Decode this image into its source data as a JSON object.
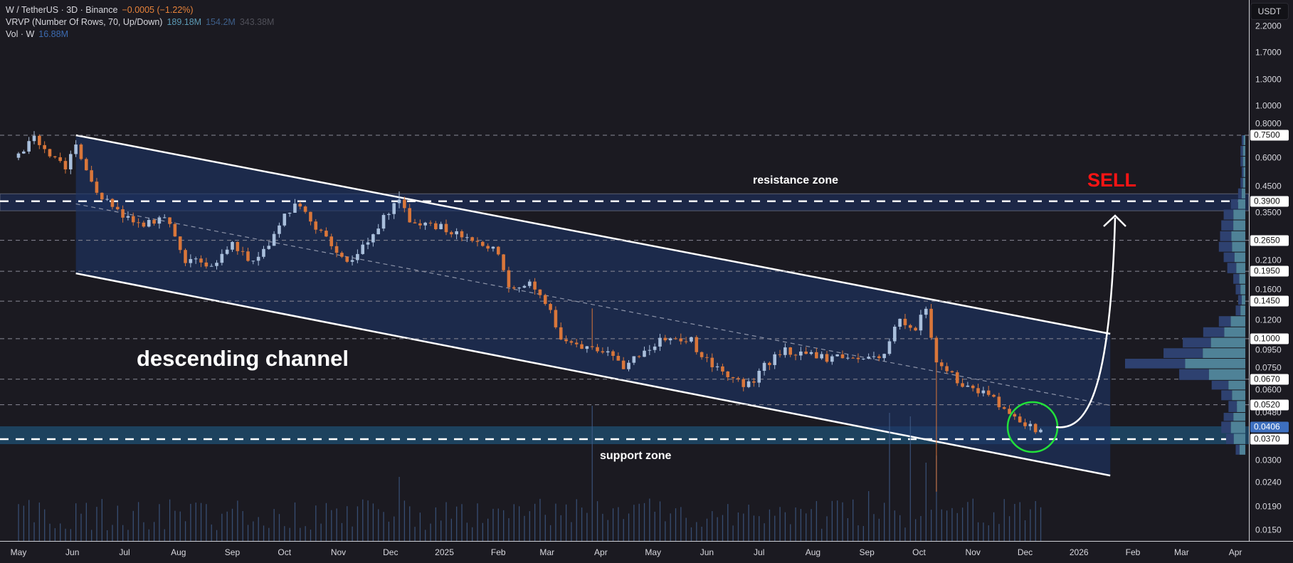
{
  "header": {
    "symbol": "W / TetherUS · 3D · Binance",
    "change": "−0.0005 (−1.22%)",
    "vrvp_label": "VRVP (Number Of Rows, 70, Up/Down)",
    "vrvp_up": "189.18M",
    "vrvp_down": "154.2M",
    "vrvp_total": "343.38M",
    "vol_label": "Vol · W",
    "vol_value": "16.88M"
  },
  "currency_button": "USDT",
  "colors": {
    "up": "#a9bfdc",
    "down": "#d9763a",
    "change": "#e8833a",
    "sell": "#ff1414",
    "circle": "#22e03a",
    "current": "#3d6fbf"
  },
  "chart_data": {
    "type": "candlestick",
    "symbol": "W/USDT",
    "interval": "3D",
    "scale": "log",
    "ylim": [
      0.014,
      2.3
    ],
    "x_ticks": [
      {
        "date": "2024-05-01",
        "label": "May"
      },
      {
        "date": "2024-06-01",
        "label": "Jun"
      },
      {
        "date": "2024-07-01",
        "label": "Jul"
      },
      {
        "date": "2024-08-01",
        "label": "Aug"
      },
      {
        "date": "2024-09-01",
        "label": "Sep"
      },
      {
        "date": "2024-10-01",
        "label": "Oct"
      },
      {
        "date": "2024-11-01",
        "label": "Nov"
      },
      {
        "date": "2024-12-01",
        "label": "Dec"
      },
      {
        "date": "2025-01-01",
        "label": "2025"
      },
      {
        "date": "2025-02-01",
        "label": "Feb"
      },
      {
        "date": "2025-03-01",
        "label": "Mar"
      },
      {
        "date": "2025-04-01",
        "label": "Apr"
      },
      {
        "date": "2025-05-01",
        "label": "May"
      },
      {
        "date": "2025-06-01",
        "label": "Jun"
      },
      {
        "date": "2025-07-01",
        "label": "Jul"
      },
      {
        "date": "2025-08-01",
        "label": "Aug"
      },
      {
        "date": "2025-09-01",
        "label": "Sep"
      },
      {
        "date": "2025-10-01",
        "label": "Oct"
      },
      {
        "date": "2025-11-01",
        "label": "Nov"
      },
      {
        "date": "2025-12-01",
        "label": "Dec"
      },
      {
        "date": "2026-01-01",
        "label": "2026"
      },
      {
        "date": "2026-02-01",
        "label": "Feb"
      },
      {
        "date": "2026-03-01",
        "label": "Mar"
      },
      {
        "date": "2026-04-01",
        "label": "Apr"
      }
    ],
    "y_ticks": [
      "2.2000",
      "1.7000",
      "1.3000",
      "1.0000",
      "0.8000",
      "0.6000",
      "0.4500",
      "0.3500",
      "0.2100",
      "0.1600",
      "0.1200",
      "0.0950",
      "0.0750",
      "0.0600",
      "0.0480",
      "0.0300",
      "0.0240",
      "0.0190",
      "0.0150"
    ],
    "levels": [
      {
        "label": "0.7500",
        "style": "dashed"
      },
      {
        "label": "0.3900",
        "style": "bold"
      },
      {
        "label": "0.2650",
        "style": "dashed"
      },
      {
        "label": "0.1950",
        "style": "dashed"
      },
      {
        "label": "0.1450",
        "style": "dashed"
      },
      {
        "label": "0.1000",
        "style": "dashed"
      },
      {
        "label": "0.0670",
        "style": "dashed"
      },
      {
        "label": "0.0520",
        "style": "dashed"
      },
      {
        "label": "0.0370",
        "style": "bold"
      }
    ],
    "current_price": "0.0406",
    "price_path": [
      [
        "2024-05-01",
        0.6
      ],
      [
        "2024-05-10",
        0.72
      ],
      [
        "2024-05-20",
        0.6
      ],
      [
        "2024-05-28",
        0.56
      ],
      [
        "2024-06-03",
        0.68
      ],
      [
        "2024-06-09",
        0.52
      ],
      [
        "2024-06-18",
        0.4
      ],
      [
        "2024-06-27",
        0.35
      ],
      [
        "2024-07-10",
        0.3
      ],
      [
        "2024-07-24",
        0.33
      ],
      [
        "2024-08-05",
        0.22
      ],
      [
        "2024-08-20",
        0.21
      ],
      [
        "2024-09-01",
        0.25
      ],
      [
        "2024-09-15",
        0.21
      ],
      [
        "2024-09-30",
        0.33
      ],
      [
        "2024-10-06",
        0.38
      ],
      [
        "2024-10-20",
        0.3
      ],
      [
        "2024-11-05",
        0.21
      ],
      [
        "2024-11-20",
        0.28
      ],
      [
        "2024-12-01",
        0.36
      ],
      [
        "2024-12-06",
        0.4
      ],
      [
        "2024-12-15",
        0.3
      ],
      [
        "2024-12-30",
        0.31
      ],
      [
        "2025-01-15",
        0.26
      ],
      [
        "2025-02-01",
        0.24
      ],
      [
        "2025-02-08",
        0.16
      ],
      [
        "2025-02-20",
        0.175
      ],
      [
        "2025-03-01",
        0.14
      ],
      [
        "2025-03-10",
        0.1
      ],
      [
        "2025-03-25",
        0.09
      ],
      [
        "2025-04-05",
        0.085
      ],
      [
        "2025-04-12",
        0.076
      ],
      [
        "2025-04-25",
        0.085
      ],
      [
        "2025-05-05",
        0.1
      ],
      [
        "2025-05-15",
        0.097
      ],
      [
        "2025-05-22",
        0.1
      ],
      [
        "2025-06-01",
        0.08
      ],
      [
        "2025-06-15",
        0.068
      ],
      [
        "2025-06-25",
        0.063
      ],
      [
        "2025-07-03",
        0.076
      ],
      [
        "2025-07-15",
        0.09
      ],
      [
        "2025-08-01",
        0.085
      ],
      [
        "2025-08-15",
        0.082
      ],
      [
        "2025-09-01",
        0.08
      ],
      [
        "2025-09-10",
        0.086
      ],
      [
        "2025-09-20",
        0.12
      ],
      [
        "2025-09-28",
        0.104
      ],
      [
        "2025-10-05",
        0.14
      ],
      [
        "2025-10-10",
        0.08
      ],
      [
        "2025-10-20",
        0.07
      ],
      [
        "2025-11-01",
        0.06
      ],
      [
        "2025-11-10",
        0.057
      ],
      [
        "2025-11-20",
        0.048
      ],
      [
        "2025-12-01",
        0.042
      ],
      [
        "2025-12-10",
        0.0406
      ]
    ],
    "wicks": [
      [
        "2025-10-10",
        0.022
      ],
      [
        "2025-03-26",
        0.135
      ],
      [
        "2024-12-06",
        0.43
      ]
    ],
    "volume_spikes": [
      [
        "2025-03-26",
        190
      ],
      [
        "2025-09-15",
        180
      ],
      [
        "2025-09-27",
        175
      ],
      [
        "2025-10-10",
        120
      ],
      [
        "2024-12-06",
        90
      ],
      [
        "2025-10-04",
        110
      ],
      [
        "2025-09-01",
        70
      ]
    ],
    "volume_profile": [
      [
        0.75,
        3,
        0.5
      ],
      [
        0.675,
        4,
        0.5
      ],
      [
        0.607,
        4,
        0.5
      ],
      [
        0.547,
        3,
        0.5
      ],
      [
        0.492,
        4,
        0.5
      ],
      [
        0.443,
        6,
        0.5
      ],
      [
        0.398,
        12,
        0.5
      ],
      [
        0.359,
        18,
        0.55
      ],
      [
        0.323,
        20,
        0.5
      ],
      [
        0.29,
        21,
        0.55
      ],
      [
        0.261,
        22,
        0.5
      ],
      [
        0.235,
        18,
        0.5
      ],
      [
        0.212,
        15,
        0.5
      ],
      [
        0.19,
        10,
        0.5
      ],
      [
        0.171,
        8,
        0.5
      ],
      [
        0.154,
        6,
        0.5
      ],
      [
        0.139,
        8,
        0.5
      ],
      [
        0.125,
        22,
        0.55
      ],
      [
        0.112,
        35,
        0.5
      ],
      [
        0.101,
        52,
        0.55
      ],
      [
        0.091,
        68,
        0.52
      ],
      [
        0.082,
        100,
        0.5
      ],
      [
        0.074,
        55,
        0.55
      ],
      [
        0.066,
        28,
        0.5
      ],
      [
        0.06,
        20,
        0.55
      ],
      [
        0.054,
        14,
        0.5
      ],
      [
        0.048,
        18,
        0.55
      ],
      [
        0.044,
        20,
        0.6
      ],
      [
        0.039,
        16,
        0.6
      ],
      [
        0.035,
        8,
        0.6
      ]
    ],
    "channel": {
      "upper": [
        [
          "2024-06-03",
          0.75
        ],
        [
          "2026-01-19",
          0.105
        ]
      ],
      "lower": [
        [
          "2024-06-03",
          0.191
        ],
        [
          "2026-01-19",
          0.0258
        ]
      ],
      "mid": [
        [
          "2024-06-03",
          0.38
        ],
        [
          "2026-01-19",
          0.0517
        ]
      ]
    },
    "zones": {
      "resistance": [
        0.355,
        0.42
      ],
      "support": [
        0.0352,
        0.042
      ]
    },
    "annotations": {
      "channel_label": "descending channel",
      "resistance_label": "resistance zone",
      "support_label": "support zone",
      "sell_label": "SELL"
    }
  }
}
